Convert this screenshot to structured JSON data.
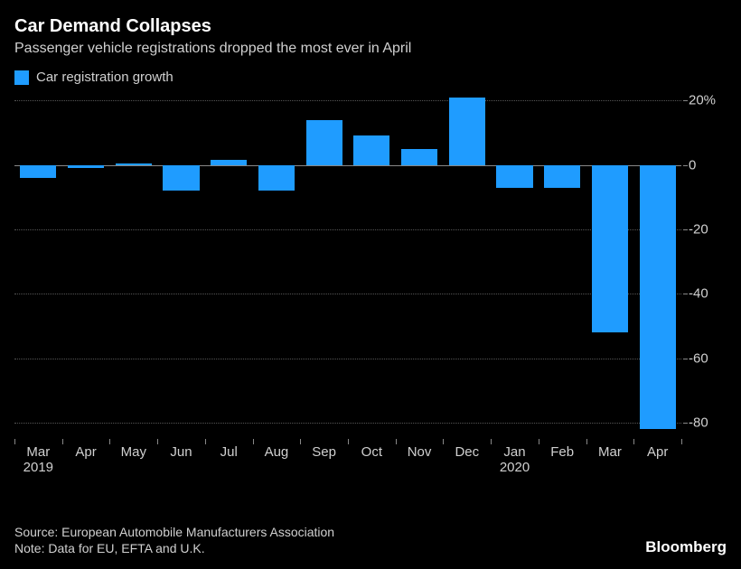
{
  "header": {
    "title": "Car Demand Collapses",
    "subtitle": "Passenger vehicle registrations dropped the most ever in April"
  },
  "legend": {
    "label": "Car registration growth",
    "swatch_color": "#1f9cff"
  },
  "chart": {
    "type": "bar",
    "background_color": "#000000",
    "bar_color": "#1f9cff",
    "grid_color": "#555555",
    "zero_line_color": "#888888",
    "tick_color": "#888888",
    "text_color": "#d0d0d0",
    "ymin": -85,
    "ymax": 22,
    "yticks": [
      {
        "value": 20,
        "label": "20%"
      },
      {
        "value": 0,
        "label": "0"
      },
      {
        "value": -20,
        "label": "-20"
      },
      {
        "value": -40,
        "label": "-40"
      },
      {
        "value": -60,
        "label": "-60"
      },
      {
        "value": -80,
        "label": "-80"
      }
    ],
    "first_tick_is_percent": true,
    "categories": [
      {
        "label": "Mar",
        "sublabel": "2019",
        "value": -4
      },
      {
        "label": "Apr",
        "sublabel": "",
        "value": -1
      },
      {
        "label": "May",
        "sublabel": "",
        "value": 0.5
      },
      {
        "label": "Jun",
        "sublabel": "",
        "value": -8
      },
      {
        "label": "Jul",
        "sublabel": "",
        "value": 1.5
      },
      {
        "label": "Aug",
        "sublabel": "",
        "value": -8
      },
      {
        "label": "Sep",
        "sublabel": "",
        "value": 14
      },
      {
        "label": "Oct",
        "sublabel": "",
        "value": 9
      },
      {
        "label": "Nov",
        "sublabel": "",
        "value": 5
      },
      {
        "label": "Dec",
        "sublabel": "",
        "value": 21
      },
      {
        "label": "Jan",
        "sublabel": "2020",
        "value": -7
      },
      {
        "label": "Feb",
        "sublabel": "",
        "value": -7
      },
      {
        "label": "Mar",
        "sublabel": "",
        "value": -52
      },
      {
        "label": "Apr",
        "sublabel": "",
        "value": -82
      }
    ]
  },
  "footer": {
    "source": "Source: European Automobile Manufacturers Association",
    "note": "Note: Data for EU, EFTA and U.K.",
    "brand": "Bloomberg"
  }
}
